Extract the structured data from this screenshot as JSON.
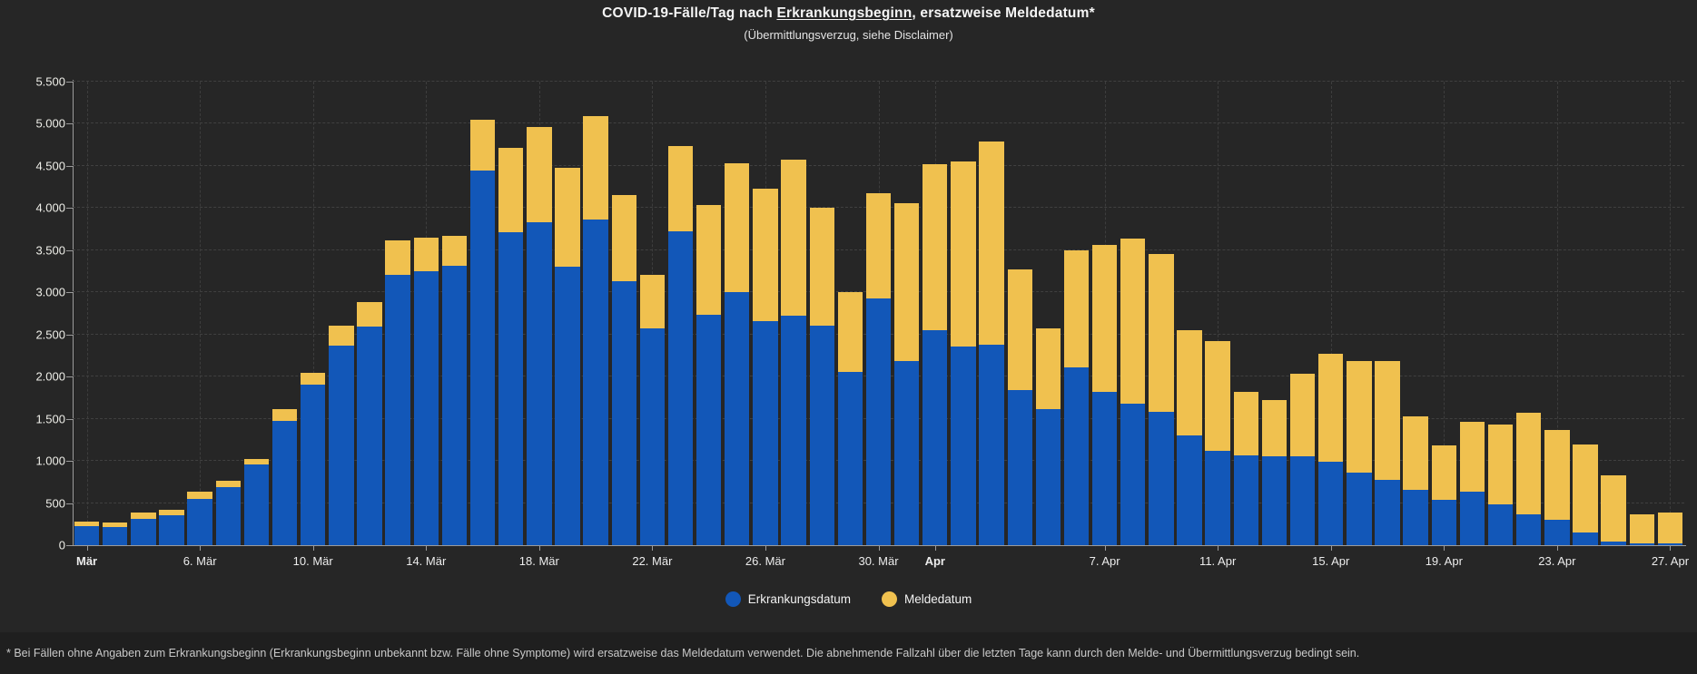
{
  "title": {
    "pre": "COVID-19-Fälle/Tag nach ",
    "underlined": "Erkrankungsbeginn",
    "post": ", ersatzweise Meldedatum*"
  },
  "subtitle": "(Übermittlungsverzug, siehe Disclaimer)",
  "footnote": "* Bei Fällen ohne Angaben zum Erkrankungsbeginn (Erkrankungsbeginn unbekannt bzw. Fälle ohne Symptome) wird ersatzweise das Meldedatum verwendet. Die abnehmende Fallzahl über die letzten Tage kann durch den Melde- und Übermittlungsverzug bedingt sein.",
  "legend": [
    {
      "label": "Erkrankungsdatum",
      "color": "#1257b8"
    },
    {
      "label": "Meldedatum",
      "color": "#f0c14f"
    }
  ],
  "colors": {
    "background": "#262626",
    "footer_background": "#1f1f1f",
    "grid": "#404040",
    "axis": "#9b9b9b",
    "blue": "#1257b8",
    "yellow": "#f0c14f"
  },
  "chart_data": {
    "type": "bar",
    "stacked": true,
    "title": "COVID-19-Fälle/Tag nach Erkrankungsbeginn, ersatzweise Meldedatum*",
    "subtitle": "(Übermittlungsverzug, siehe Disclaimer)",
    "ylim": [
      0,
      5500
    ],
    "grid": true,
    "legend_position": "bottom",
    "categories": [
      "2. Mär",
      "3. Mär",
      "4. Mär",
      "5. Mär",
      "6. Mär",
      "7. Mär",
      "8. Mär",
      "9. Mär",
      "10. Mär",
      "11. Mär",
      "12. Mär",
      "13. Mär",
      "14. Mär",
      "15. Mär",
      "16. Mär",
      "17. Mär",
      "18. Mär",
      "19. Mär",
      "20. Mär",
      "21. Mär",
      "22. Mär",
      "23. Mär",
      "24. Mär",
      "25. Mär",
      "26. Mär",
      "27. Mär",
      "28. Mär",
      "29. Mär",
      "30. Mär",
      "31. Mär",
      "1. Apr",
      "2. Apr",
      "3. Apr",
      "4. Apr",
      "5. Apr",
      "6. Apr",
      "7. Apr",
      "8. Apr",
      "9. Apr",
      "10. Apr",
      "11. Apr",
      "12. Apr",
      "13. Apr",
      "14. Apr",
      "15. Apr",
      "16. Apr",
      "17. Apr",
      "18. Apr",
      "19. Apr",
      "20. Apr",
      "21. Apr",
      "22. Apr",
      "23. Apr",
      "24. Apr",
      "25. Apr",
      "26. Apr",
      "27. Apr"
    ],
    "series": [
      {
        "name": "Erkrankungsdatum",
        "color": "#1257b8",
        "values": [
          230,
          220,
          315,
          350,
          550,
          690,
          960,
          1470,
          1900,
          2370,
          2590,
          3210,
          3250,
          3310,
          4450,
          3710,
          3830,
          3300,
          3860,
          3130,
          2570,
          3720,
          2730,
          3000,
          2660,
          2720,
          2600,
          2060,
          2930,
          2180,
          2550,
          2360,
          2380,
          1840,
          1620,
          2110,
          1820,
          1680,
          1580,
          1300,
          1120,
          1070,
          1050,
          1060,
          990,
          860,
          780,
          660,
          540,
          630,
          480,
          370,
          300,
          150,
          40,
          20,
          20
        ]
      },
      {
        "name": "Meldedatum",
        "color": "#f0c14f",
        "values": [
          50,
          50,
          75,
          70,
          80,
          70,
          60,
          140,
          150,
          240,
          290,
          410,
          400,
          360,
          600,
          1000,
          1130,
          1180,
          1230,
          1020,
          640,
          1020,
          1310,
          1530,
          1570,
          1850,
          1400,
          940,
          1250,
          1880,
          1970,
          2190,
          2410,
          1430,
          950,
          1390,
          1740,
          1960,
          1870,
          1250,
          1300,
          750,
          670,
          970,
          1280,
          1330,
          1400,
          870,
          640,
          830,
          950,
          1200,
          1070,
          1050,
          790,
          350,
          370
        ]
      }
    ],
    "totals": [
      280,
      270,
      390,
      420,
      630,
      760,
      1020,
      1610,
      2050,
      2610,
      2880,
      3620,
      3650,
      3670,
      5050,
      4710,
      4960,
      4480,
      5090,
      4150,
      3210,
      4740,
      4040,
      4530,
      4230,
      4570,
      4000,
      3000,
      4180,
      4060,
      4520,
      4550,
      4790,
      3270,
      2570,
      3500,
      3560,
      3640,
      3450,
      2550,
      2420,
      1820,
      1720,
      2030,
      2270,
      2190,
      2180,
      1530,
      1180,
      1460,
      1430,
      1570,
      1370,
      1200,
      830,
      370,
      390
    ],
    "y_ticks": [
      {
        "value": 0,
        "label": "0"
      },
      {
        "value": 500,
        "label": "500"
      },
      {
        "value": 1000,
        "label": "1.000"
      },
      {
        "value": 1500,
        "label": "1.500"
      },
      {
        "value": 2000,
        "label": "2.000"
      },
      {
        "value": 2500,
        "label": "2.500"
      },
      {
        "value": 3000,
        "label": "3.000"
      },
      {
        "value": 3500,
        "label": "3.500"
      },
      {
        "value": 4000,
        "label": "4.000"
      },
      {
        "value": 4500,
        "label": "4.500"
      },
      {
        "value": 5000,
        "label": "5.000"
      },
      {
        "value": 5500,
        "label": "5.500"
      }
    ],
    "x_ticks": [
      {
        "label": "Mär",
        "index": 0,
        "bold": true
      },
      {
        "label": "6. Mär",
        "index": 4,
        "bold": false
      },
      {
        "label": "10. Mär",
        "index": 8,
        "bold": false
      },
      {
        "label": "14. Mär",
        "index": 12,
        "bold": false
      },
      {
        "label": "18. Mär",
        "index": 16,
        "bold": false
      },
      {
        "label": "22. Mär",
        "index": 20,
        "bold": false
      },
      {
        "label": "26. Mär",
        "index": 24,
        "bold": false
      },
      {
        "label": "30. Mär",
        "index": 28,
        "bold": false
      },
      {
        "label": "Apr",
        "index": 30,
        "bold": true
      },
      {
        "label": "7. Apr",
        "index": 36,
        "bold": false
      },
      {
        "label": "11. Apr",
        "index": 40,
        "bold": false
      },
      {
        "label": "15. Apr",
        "index": 44,
        "bold": false
      },
      {
        "label": "19. Apr",
        "index": 48,
        "bold": false
      },
      {
        "label": "23. Apr",
        "index": 52,
        "bold": false
      },
      {
        "label": "27. Apr",
        "index": 56,
        "bold": false
      }
    ]
  }
}
